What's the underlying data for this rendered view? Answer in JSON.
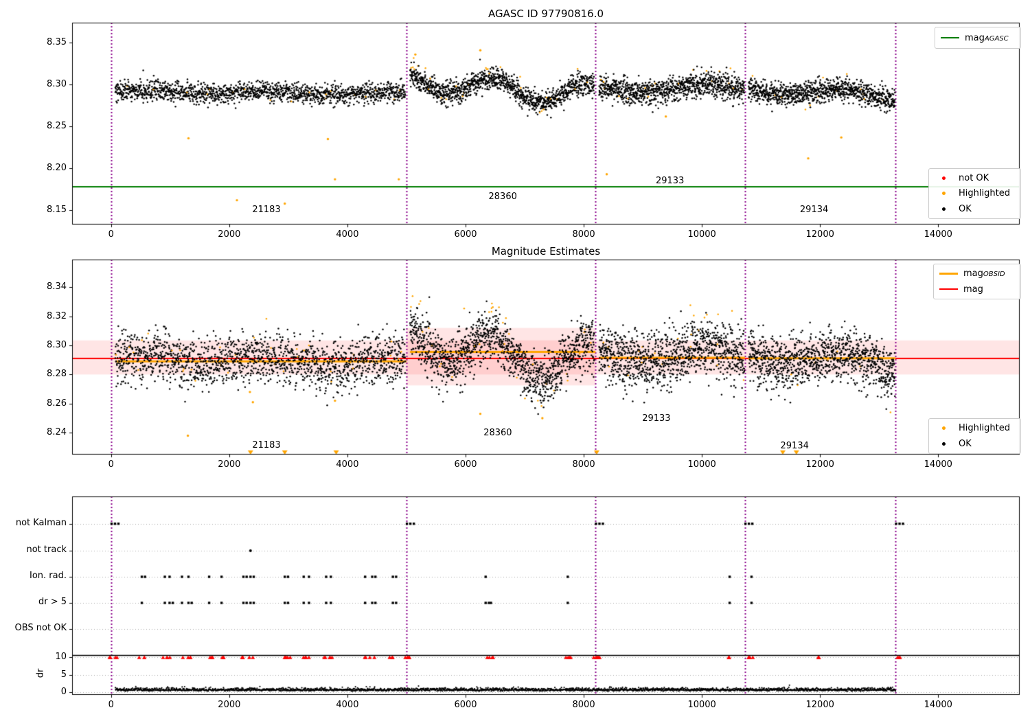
{
  "colors": {
    "ok": "#000000",
    "highlighted": "#FFA500",
    "not_ok": "#FF0000",
    "mag_agasc_line": "#007D00",
    "mag_line": "#FF0000",
    "mag_obsid_line": "#FFA500",
    "obsid_vline": "#8B008B",
    "band_fill": "rgba(255,0,0,0.10)",
    "grid_dotted": "#AAAAAA",
    "frame": "#000000"
  },
  "chart_data": [
    {
      "id": "agasc-mag",
      "type": "scatter",
      "title": "AGASC ID 97790816.0",
      "xlim": [
        -660,
        15380
      ],
      "ylim": [
        8.133,
        8.374
      ],
      "xticks": [
        0,
        2000,
        4000,
        6000,
        8000,
        10000,
        12000,
        14000
      ],
      "yticks": [
        8.15,
        8.2,
        8.25,
        8.3,
        8.35
      ],
      "ytick_labels": [
        "8.15",
        "8.20",
        "8.25",
        "8.30",
        "8.35"
      ],
      "hline": {
        "value": 8.178,
        "color_key": "mag_agasc_line",
        "legend": {
          "label": "mag",
          "sub": "AGASC"
        }
      },
      "vlines": [
        0,
        5000,
        8200,
        10730,
        13280
      ],
      "legend_scatter": [
        {
          "label": "not OK",
          "color_key": "not_ok"
        },
        {
          "label": "Highlighted",
          "color_key": "highlighted"
        },
        {
          "label": "OK",
          "color_key": "ok"
        }
      ],
      "annotations": [
        {
          "text": "21183",
          "x": 2630,
          "y": 8.1494
        },
        {
          "text": "28360",
          "x": 6630,
          "y": 8.165
        },
        {
          "text": "29133",
          "x": 9460,
          "y": 8.1838
        },
        {
          "text": "29134",
          "x": 11900,
          "y": 8.1494
        }
      ],
      "segments": [
        {
          "obsid": "21183",
          "x0": 70,
          "x1": 4980,
          "n": 1500,
          "mean": 8.2905,
          "noise": 0.006,
          "slope": 0,
          "waves": [
            [
              0.002,
              0.003,
              0.0
            ],
            [
              0.0012,
              0.00085,
              1.2
            ]
          ]
        },
        {
          "obsid": "28360",
          "x0": 5060,
          "x1": 8180,
          "n": 1250,
          "mean": 8.296,
          "noise": 0.0065,
          "slope": 0,
          "waves": [
            [
              0.012,
              0.004,
              0.8
            ],
            [
              0.007,
              0.00115,
              2.0
            ]
          ]
        },
        {
          "obsid": "29133",
          "x0": 8260,
          "x1": 10720,
          "n": 1000,
          "mean": 8.294,
          "noise": 0.0075,
          "slope": 0,
          "waves": [
            [
              0.006,
              0.0026,
              0.3
            ],
            [
              0.003,
              0.0008,
              1.1
            ]
          ]
        },
        {
          "obsid": "29134",
          "x0": 10790,
          "x1": 13270,
          "n": 1000,
          "mean": 8.293,
          "noise": 0.0068,
          "slope": -2.8e-06,
          "waves": [
            [
              0.005,
              0.003,
              2.1
            ],
            [
              0.002,
              0.0007,
              0.5
            ]
          ]
        }
      ],
      "hi_dev": 0.022,
      "highlight_fraction": 0.013,
      "orange_outliers": [
        [
          1310,
          8.236
        ],
        [
          2130,
          8.162
        ],
        [
          2940,
          8.158
        ],
        [
          3670,
          8.235
        ],
        [
          3790,
          8.187
        ],
        [
          4870,
          8.187
        ],
        [
          5150,
          8.336
        ],
        [
          6250,
          8.341
        ],
        [
          8390,
          8.193
        ],
        [
          9390,
          8.262
        ],
        [
          11800,
          8.212
        ],
        [
          12360,
          8.237
        ]
      ]
    },
    {
      "id": "mag-estimates",
      "type": "scatter",
      "title": "Magnitude Estimates",
      "xlim": [
        -660,
        15380
      ],
      "ylim": [
        8.225,
        8.359
      ],
      "xticks": [
        0,
        2000,
        4000,
        6000,
        8000,
        10000,
        12000,
        14000
      ],
      "yticks": [
        8.24,
        8.26,
        8.28,
        8.3,
        8.32,
        8.34
      ],
      "ytick_labels": [
        "8.24",
        "8.26",
        "8.28",
        "8.30",
        "8.32",
        "8.34"
      ],
      "hline": {
        "value": 8.291,
        "color_key": "mag_line",
        "legend": {
          "label": "mag",
          "sub": ""
        }
      },
      "obsid_line_legend": {
        "label": "mag",
        "sub": "OBSID"
      },
      "vlines": [
        0,
        5000,
        8200,
        10730,
        13280
      ],
      "bands": [
        {
          "x0": -660,
          "x1": 15380,
          "y0": 8.28,
          "y1": 8.3035
        },
        {
          "x0": 5000,
          "x1": 8200,
          "y0": 8.2725,
          "y1": 8.312
        }
      ],
      "obsid_lines": [
        {
          "x0": 70,
          "x1": 5000,
          "y": 8.289
        },
        {
          "x0": 5060,
          "x1": 8200,
          "y": 8.2955
        },
        {
          "x0": 8260,
          "x1": 10730,
          "y": 8.2915
        },
        {
          "x0": 10790,
          "x1": 13280,
          "y": 8.2912
        }
      ],
      "legend_scatter": [
        {
          "label": "Highlighted",
          "color_key": "highlighted"
        },
        {
          "label": "OK",
          "color_key": "ok"
        }
      ],
      "annotations": [
        {
          "text": "21183",
          "x": 2630,
          "y": 8.2307
        },
        {
          "text": "28360",
          "x": 6545,
          "y": 8.2392
        },
        {
          "text": "29133",
          "x": 9230,
          "y": 8.2491
        },
        {
          "text": "29134",
          "x": 11570,
          "y": 8.2302
        }
      ],
      "triangles_bottom": [
        2360,
        2940,
        3810,
        8220,
        11370,
        11600
      ],
      "segments": [
        {
          "obsid": "21183",
          "x0": 70,
          "x1": 4980,
          "n": 1600,
          "mean": 8.2895,
          "noise": 0.0085,
          "slope": 0,
          "waves": [
            [
              0.0024,
              0.003,
              0.0
            ],
            [
              0.0014,
              0.00085,
              1.2
            ]
          ]
        },
        {
          "obsid": "28360",
          "x0": 5060,
          "x1": 8180,
          "n": 1300,
          "mean": 8.295,
          "noise": 0.009,
          "slope": 0,
          "waves": [
            [
              0.013,
              0.004,
              0.8
            ],
            [
              0.0075,
              0.00115,
              2.0
            ]
          ]
        },
        {
          "obsid": "29133",
          "x0": 8260,
          "x1": 10720,
          "n": 1050,
          "mean": 8.2915,
          "noise": 0.0095,
          "slope": 0,
          "waves": [
            [
              0.0065,
              0.0026,
              0.3
            ],
            [
              0.0033,
              0.0008,
              1.1
            ]
          ]
        },
        {
          "obsid": "29134",
          "x0": 10790,
          "x1": 13270,
          "n": 1050,
          "mean": 8.2912,
          "noise": 0.009,
          "slope": -2e-06,
          "waves": [
            [
              0.0055,
              0.003,
              2.1
            ],
            [
              0.0022,
              0.0007,
              0.5
            ]
          ]
        }
      ],
      "hi_dev": 0.027,
      "highlight_fraction": 0.015,
      "orange_outliers": [
        [
          1300,
          8.238
        ],
        [
          2350,
          8.268
        ],
        [
          2400,
          8.261
        ],
        [
          3790,
          8.262
        ],
        [
          6250,
          8.253
        ],
        [
          7300,
          8.25
        ]
      ]
    },
    {
      "id": "flags",
      "type": "scatter",
      "rows": [
        "not Kalman",
        "not track",
        "Ion. rad.",
        "dr > 5",
        "OBS not OK"
      ],
      "dr_axis": {
        "label": "dr",
        "ticks": [
          0,
          5,
          10
        ],
        "tick_labels": [
          "0",
          "5",
          "10"
        ],
        "clip_value": 10
      },
      "xticks": [
        0,
        2000,
        4000,
        6000,
        8000,
        10000,
        12000,
        14000
      ],
      "vlines": [
        0,
        5000,
        8200,
        10730,
        13280
      ],
      "kalman_x": [
        0,
        5000,
        8200,
        10730,
        13280
      ],
      "not_track_x": [
        2360
      ],
      "ion_rad_x": [
        520,
        910,
        990,
        1200,
        1310,
        1660,
        1870,
        2240,
        2360,
        2940,
        3260,
        3350,
        3640,
        3720,
        4300,
        4420,
        4770,
        6340,
        7730,
        10470,
        10840
      ],
      "dr_gt5_x": [
        520,
        910,
        990,
        1200,
        1310,
        1660,
        1870,
        2240,
        2360,
        2940,
        3260,
        3350,
        3640,
        3720,
        4300,
        4420,
        4770,
        6340,
        6430,
        7730,
        10470,
        10840
      ],
      "obs_not_ok_x": [],
      "dr_clip_x": [
        0,
        60,
        520,
        910,
        990,
        1200,
        1310,
        1660,
        1720,
        1870,
        2240,
        2360,
        2940,
        3010,
        3260,
        3350,
        3640,
        3720,
        4300,
        4420,
        4740,
        5000,
        5060,
        6340,
        6430,
        7700,
        7760,
        8200,
        8260,
        10470,
        10780,
        10840,
        12000,
        13280,
        13340
      ],
      "dr_noise": {
        "x0": 70,
        "x1": 13280,
        "n": 2600,
        "max": 2.0
      }
    }
  ]
}
